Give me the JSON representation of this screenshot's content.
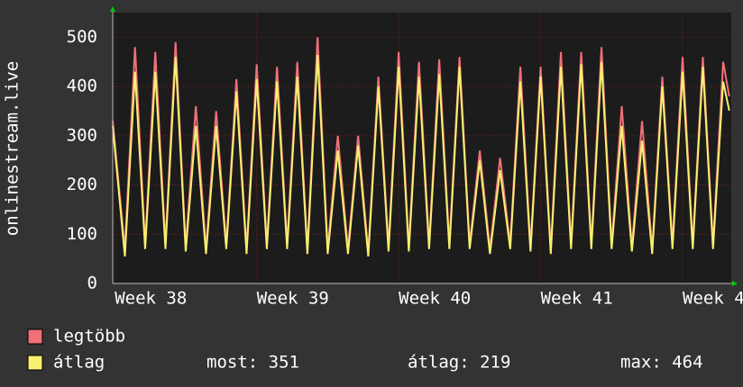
{
  "chart_data": {
    "type": "line",
    "ylabel": "onlinestream.live",
    "x": [
      -0.1,
      0.5,
      1,
      1.5,
      2,
      2.5,
      3,
      3.5,
      4,
      4.5,
      5,
      5.5,
      6,
      6.5,
      7,
      7.5,
      8,
      8.5,
      9,
      9.5,
      10,
      10.5,
      11,
      11.5,
      12,
      12.5,
      13,
      13.5,
      14,
      14.5,
      15,
      15.5,
      16,
      16.5,
      17,
      17.5,
      18,
      18.5,
      19,
      19.5,
      20,
      20.5,
      21,
      21.5,
      22,
      22.5,
      23,
      23.5,
      24,
      24.5,
      25,
      25.5,
      26,
      26.5,
      27,
      27.5,
      28,
      28.5,
      29,
      29.5,
      30,
      30.3
    ],
    "series": [
      {
        "name": "legtöbb",
        "color": "#f07078",
        "values": [
          330,
          70,
          480,
          80,
          470,
          80,
          490,
          75,
          360,
          70,
          350,
          80,
          415,
          70,
          445,
          80,
          440,
          80,
          450,
          70,
          500,
          70,
          300,
          70,
          300,
          65,
          420,
          75,
          470,
          75,
          450,
          80,
          455,
          80,
          460,
          80,
          270,
          70,
          255,
          80,
          440,
          75,
          440,
          70,
          470,
          80,
          470,
          80,
          480,
          80,
          360,
          75,
          330,
          70,
          420,
          80,
          460,
          80,
          460,
          80,
          450,
          380
        ]
      },
      {
        "name": "átlag",
        "color": "#f8f070",
        "values": [
          320,
          55,
          430,
          70,
          430,
          70,
          460,
          65,
          320,
          60,
          320,
          70,
          390,
          60,
          415,
          70,
          410,
          70,
          420,
          60,
          464,
          60,
          270,
          60,
          280,
          55,
          400,
          65,
          440,
          65,
          420,
          70,
          425,
          70,
          440,
          70,
          250,
          60,
          230,
          70,
          410,
          65,
          420,
          60,
          440,
          70,
          445,
          70,
          450,
          70,
          320,
          65,
          290,
          60,
          400,
          70,
          430,
          70,
          440,
          70,
          410,
          351
        ]
      }
    ],
    "stats": [
      "most: 351",
      "átlag: 219",
      "max: 464"
    ],
    "xlim": [
      -0.1,
      30.4
    ],
    "xticks": [
      {
        "value": 0,
        "label": "Week 38"
      },
      {
        "value": 7,
        "label": "Week 39"
      },
      {
        "value": 14,
        "label": "Week 40"
      },
      {
        "value": 21,
        "label": "Week 41"
      },
      {
        "value": 28,
        "label": "Week 4"
      }
    ],
    "ylim": [
      0,
      550
    ],
    "yticks": [
      0,
      100,
      200,
      300,
      400,
      500
    ],
    "grid": true
  }
}
